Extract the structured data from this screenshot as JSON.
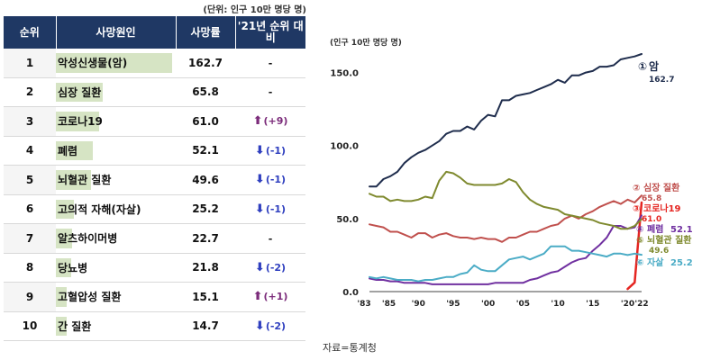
{
  "table": {
    "unit_note": "(단위: 인구 10만 명당 명)",
    "headers": [
      "순위",
      "사망원인",
      "사망률",
      "'21년 순위 대비"
    ],
    "rows": [
      {
        "rank": "1",
        "cause": "악성신생물(암)",
        "rate": "162.7",
        "rate_value": 162.7,
        "change": "-",
        "dir": "none"
      },
      {
        "rank": "2",
        "cause": "심장 질환",
        "rate": "65.8",
        "rate_value": 65.8,
        "change": "-",
        "dir": "none"
      },
      {
        "rank": "3",
        "cause": "코로나19",
        "rate": "61.0",
        "rate_value": 61.0,
        "change": "(+9)",
        "dir": "up"
      },
      {
        "rank": "4",
        "cause": "폐렴",
        "rate": "52.1",
        "rate_value": 52.1,
        "change": "(-1)",
        "dir": "down"
      },
      {
        "rank": "5",
        "cause": "뇌혈관 질환",
        "rate": "49.6",
        "rate_value": 49.6,
        "change": "(-1)",
        "dir": "down"
      },
      {
        "rank": "6",
        "cause": "고의적 자해(자살)",
        "rate": "25.2",
        "rate_value": 25.2,
        "change": "(-1)",
        "dir": "down"
      },
      {
        "rank": "7",
        "cause": "알츠하이머병",
        "rate": "22.7",
        "rate_value": 22.7,
        "change": "-",
        "dir": "none"
      },
      {
        "rank": "8",
        "cause": "당뇨병",
        "rate": "21.8",
        "rate_value": 21.8,
        "change": "(-2)",
        "dir": "down"
      },
      {
        "rank": "9",
        "cause": "고혈압성 질환",
        "rate": "15.1",
        "rate_value": 15.1,
        "change": "(+1)",
        "dir": "up"
      },
      {
        "rank": "10",
        "cause": "간 질환",
        "rate": "14.7",
        "rate_value": 14.7,
        "change": "(-2)",
        "dir": "down"
      }
    ],
    "colors": {
      "header_bg": "#1f3864",
      "bar": "#d6e4c4",
      "up": "#7b2b7a",
      "down": "#2f3fbf"
    }
  },
  "chart_data": {
    "type": "line",
    "unit_label": "(인구 10만 명당 명)",
    "x": [
      1983,
      1984,
      1985,
      1986,
      1987,
      1988,
      1989,
      1990,
      1991,
      1992,
      1993,
      1994,
      1995,
      1996,
      1997,
      1998,
      1999,
      2000,
      2001,
      2002,
      2003,
      2004,
      2005,
      2006,
      2007,
      2008,
      2009,
      2010,
      2011,
      2012,
      2013,
      2014,
      2015,
      2016,
      2017,
      2018,
      2019,
      2020,
      2021,
      2022
    ],
    "xtick_values": [
      1983,
      1985,
      1990,
      1995,
      2000,
      2005,
      2010,
      2015,
      2020,
      2022
    ],
    "xtick_labels": [
      "'83",
      "'85",
      "'90",
      "'95",
      "'00",
      "'05",
      "'10",
      "'15",
      "'20",
      "'22"
    ],
    "yticks": [
      0.0,
      50.0,
      100.0,
      150.0
    ],
    "ytick_labels": [
      "0.0",
      "50.0",
      "100.0",
      "150.0"
    ],
    "ylim": [
      0,
      175
    ],
    "series": [
      {
        "name": "암",
        "marker": "①",
        "label_value": "162.7",
        "color": "#1f2d4d",
        "values": [
          72,
          72,
          77,
          79,
          82,
          88,
          92,
          95,
          97,
          100,
          103,
          108,
          110,
          110,
          113,
          111,
          117,
          121,
          120,
          131,
          131,
          134,
          135,
          136,
          138,
          140,
          142,
          145,
          143,
          148,
          148,
          150,
          151,
          154,
          154,
          155,
          159,
          160,
          161,
          162.7
        ]
      },
      {
        "name": "심장 질환",
        "marker": "②",
        "label_value": "65.8",
        "color": "#c0504d",
        "values": [
          46,
          45,
          44,
          41,
          41,
          39,
          37,
          40,
          40,
          37,
          39,
          40,
          38,
          37,
          37,
          36,
          37,
          36,
          36,
          34,
          37,
          37,
          39,
          41,
          41,
          43,
          45,
          46,
          50,
          52,
          50,
          53,
          55,
          58,
          60,
          62,
          60,
          63,
          61,
          65.8
        ]
      },
      {
        "name": "코로나19",
        "marker": "③",
        "label_value": "61.0",
        "color": "#e52521",
        "values": [
          null,
          null,
          null,
          null,
          null,
          null,
          null,
          null,
          null,
          null,
          null,
          null,
          null,
          null,
          null,
          null,
          null,
          null,
          null,
          null,
          null,
          null,
          null,
          null,
          null,
          null,
          null,
          null,
          null,
          null,
          null,
          null,
          null,
          null,
          null,
          null,
          null,
          1.8,
          6.2,
          61.0
        ]
      },
      {
        "name": "폐렴",
        "marker": "④",
        "label_value": "52.1",
        "color": "#7030a0",
        "values": [
          9,
          8,
          8,
          7,
          7,
          6,
          6,
          6,
          6,
          5,
          5,
          5,
          5,
          5,
          5,
          5,
          5,
          5,
          6,
          6,
          6,
          6,
          6,
          8,
          9,
          11,
          13,
          14,
          17,
          20,
          22,
          23,
          28,
          32,
          37,
          45,
          45,
          43,
          44,
          52.1
        ]
      },
      {
        "name": "뇌혈관 질환",
        "marker": "⑤",
        "label_value": "49.6",
        "color": "#7f8a2f",
        "values": [
          67,
          65,
          65,
          62,
          63,
          62,
          62,
          63,
          65,
          64,
          76,
          82,
          81,
          78,
          74,
          73,
          73,
          73,
          73,
          74,
          77,
          75,
          68,
          63,
          60,
          58,
          57,
          56,
          53,
          52,
          51,
          50,
          49,
          47,
          46,
          45,
          43,
          43,
          45,
          49.6
        ]
      },
      {
        "name": "자살",
        "marker": "⑥",
        "label_value": "25.2",
        "color": "#4bacc6",
        "values": [
          10,
          9,
          10,
          9,
          8,
          8,
          8,
          7,
          8,
          8,
          9,
          10,
          10,
          12,
          13,
          18,
          15,
          14,
          14,
          18,
          22,
          23,
          24,
          22,
          24,
          26,
          31,
          31,
          31,
          28,
          28,
          27,
          26,
          25,
          24,
          26,
          26,
          25,
          26,
          25.2
        ]
      }
    ],
    "grid": false,
    "legend": "inline-right"
  },
  "source": "자료=통계청"
}
